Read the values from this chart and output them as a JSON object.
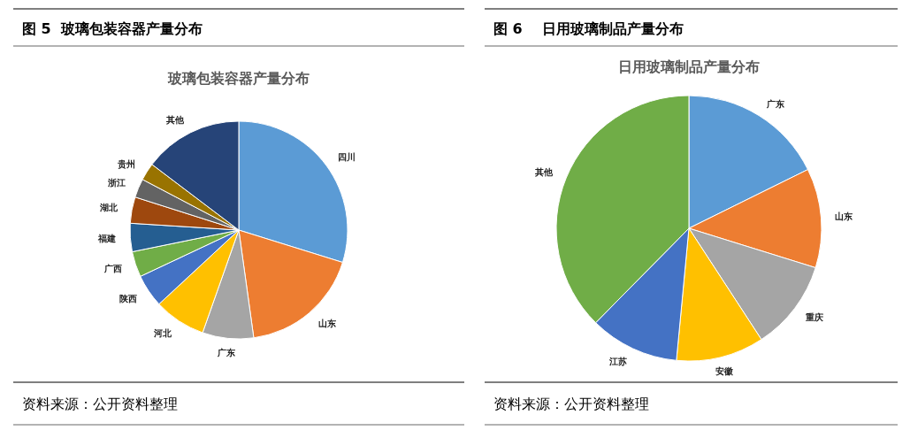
{
  "chart_data": [
    {
      "type": "pie",
      "title": "图 5  玻璃包装容器产量分布",
      "subtitle": "玻璃包装容器产量分布",
      "categories": [
        "四川",
        "山东",
        "广东",
        "河北",
        "陕西",
        "广西",
        "福建",
        "湖北",
        "浙江",
        "贵州",
        "其他"
      ],
      "values": [
        29.8,
        18.0,
        7.6,
        7.7,
        4.9,
        3.8,
        4.2,
        3.9,
        2.8,
        2.6,
        14.7
      ],
      "colors": [
        "#5b9bd5",
        "#ed7d31",
        "#a5a5a5",
        "#ffc000",
        "#4472c4",
        "#70ad47",
        "#255e91",
        "#9e480e",
        "#636363",
        "#997300",
        "#264478"
      ],
      "annotations": [
        "资料来源：公开资料整理"
      ]
    },
    {
      "type": "pie",
      "title": "图 6    日用玻璃制品产量分布",
      "subtitle": "日用玻璃制品产量分布",
      "categories": [
        "广东",
        "山东",
        "重庆",
        "安徽",
        "江苏",
        "其他"
      ],
      "values": [
        17.7,
        12.1,
        11.0,
        10.7,
        10.9,
        37.6
      ],
      "colors": [
        "#5b9bd5",
        "#ed7d31",
        "#a5a5a5",
        "#ffc000",
        "#4472c4",
        "#70ad47"
      ],
      "annotations": [
        "资料来源：公开资料整理"
      ]
    }
  ]
}
